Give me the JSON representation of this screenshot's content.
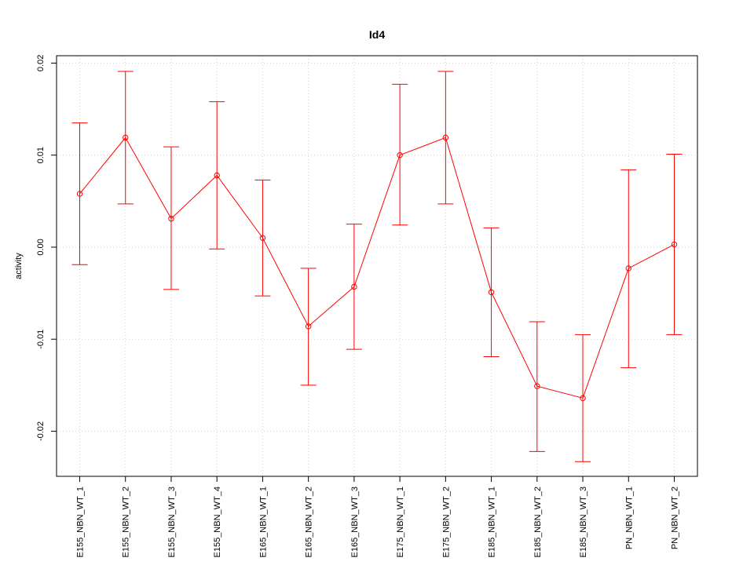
{
  "chart_data": {
    "type": "line",
    "title": "Id4",
    "xlabel": "",
    "ylabel": "activity",
    "ylim": [
      -0.0249,
      0.0208
    ],
    "y_ticks": [
      -0.02,
      -0.01,
      0.0,
      0.01,
      0.02
    ],
    "y_tick_labels": [
      "-0.02",
      "-0.01",
      "0.00",
      "0.01",
      "0.02"
    ],
    "grid": true,
    "categories": [
      "E155_NBN_WT_1",
      "E155_NBN_WT_2",
      "E155_NBN_WT_3",
      "E155_NBN_WT_4",
      "E165_NBN_WT_1",
      "E165_NBN_WT_2",
      "E165_NBN_WT_3",
      "E175_NBN_WT_1",
      "E175_NBN_WT_2",
      "E185_NBN_WT_1",
      "E185_NBN_WT_2",
      "E185_NBN_WT_3",
      "PN_NBN_WT_1",
      "PN_NBN_WT_2"
    ],
    "series": [
      {
        "values": [
          0.0058,
          0.0119,
          0.0031,
          0.0078,
          0.001,
          -0.0086,
          -0.0043,
          0.01,
          0.0119,
          -0.0049,
          -0.0151,
          -0.0164,
          -0.0023,
          0.0003
        ],
        "upper": [
          0.0135,
          0.0191,
          0.0109,
          0.0158,
          0.0073,
          -0.0023,
          0.0025,
          0.0177,
          0.0191,
          0.0021,
          -0.0081,
          -0.0095,
          0.0084,
          0.0101
        ],
        "lower": [
          -0.0019,
          0.0047,
          -0.0046,
          -0.0002,
          -0.0053,
          -0.015,
          -0.0111,
          0.0024,
          0.0047,
          -0.0119,
          -0.0222,
          -0.0233,
          -0.0131,
          -0.0095
        ],
        "color": "#ff0000"
      }
    ]
  }
}
